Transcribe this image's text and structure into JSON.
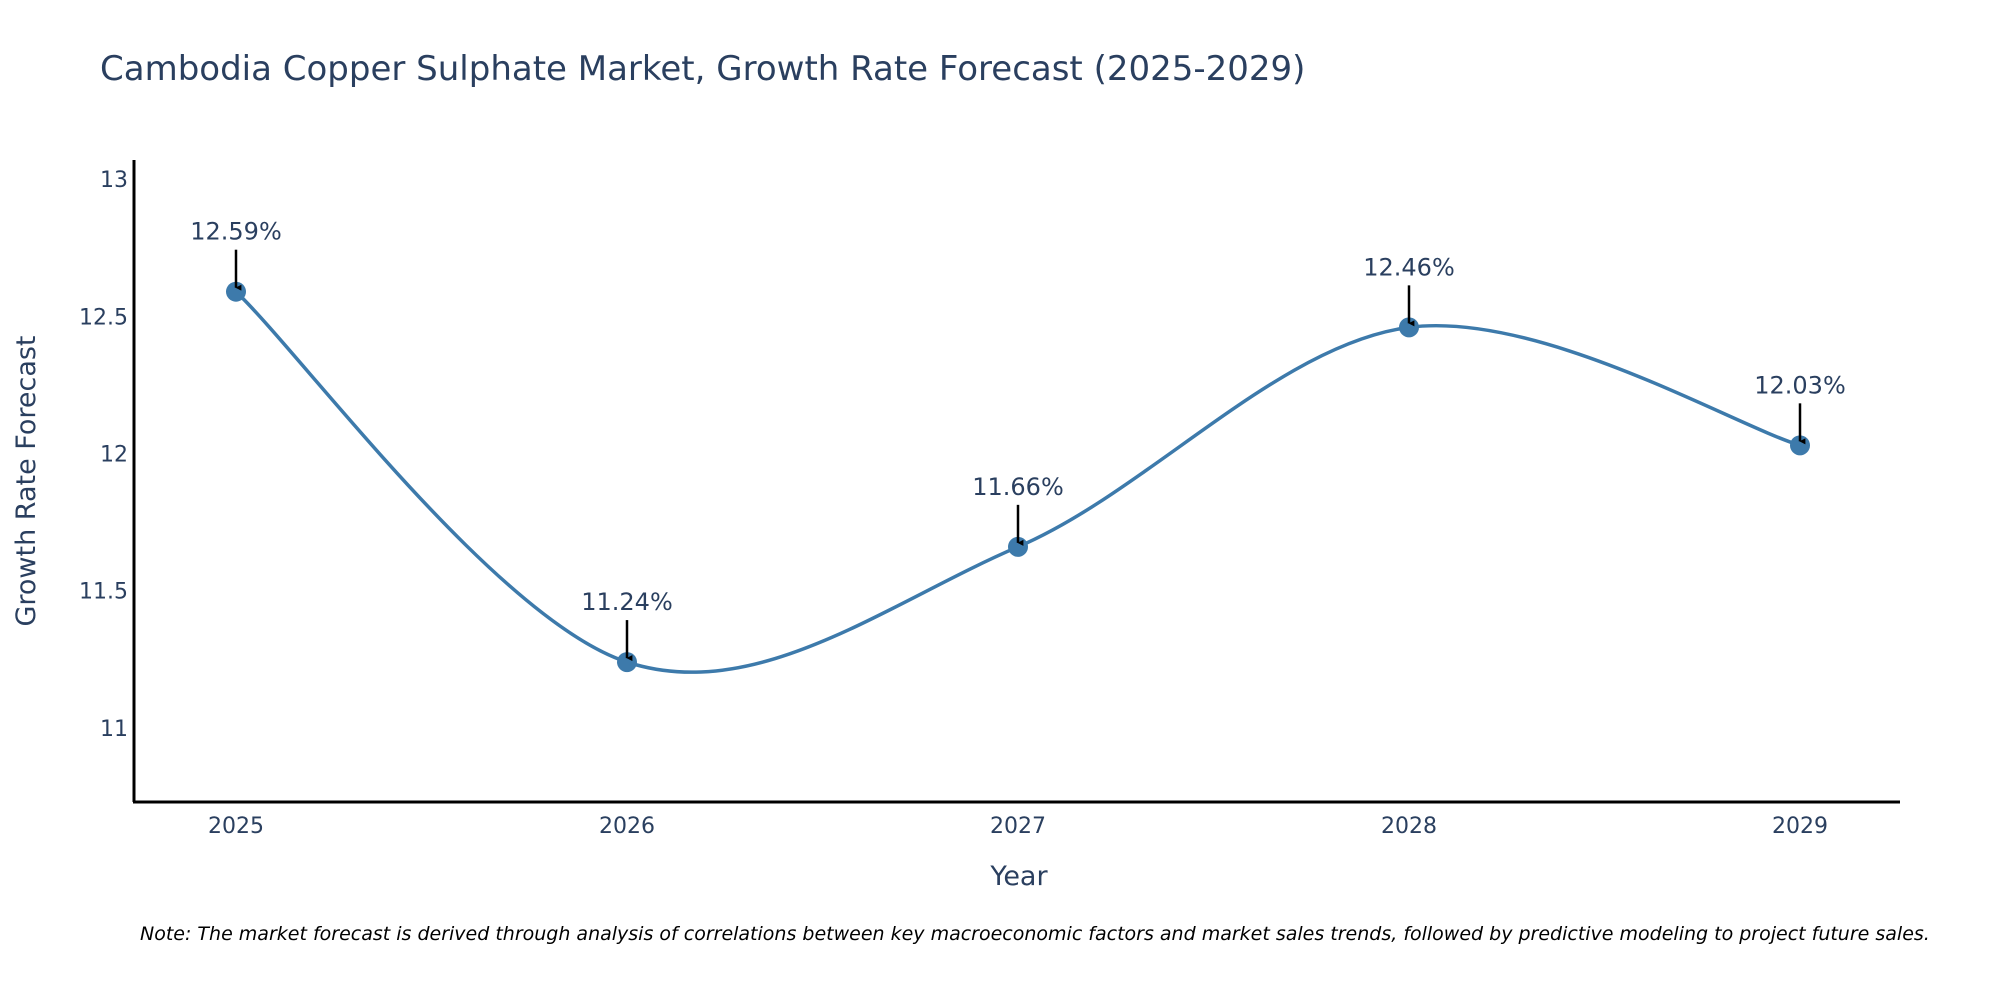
{
  "chart_data": {
    "type": "line",
    "title": "Cambodia Copper Sulphate Market, Growth Rate Forecast (2025-2029)",
    "xlabel": "Year",
    "ylabel": "Growth Rate Forecast",
    "categories": [
      "2025",
      "2026",
      "2027",
      "2028",
      "2029"
    ],
    "values": [
      12.59,
      11.24,
      11.66,
      12.46,
      12.03
    ],
    "data_labels": [
      "12.59%",
      "11.24%",
      "11.66%",
      "12.46%",
      "12.03%"
    ],
    "y_ticks": [
      11,
      11.5,
      12,
      12.5,
      13
    ],
    "y_tick_labels": [
      "11",
      "11.5",
      "12",
      "12.5",
      "13"
    ],
    "ylim": [
      10.73,
      13.07
    ],
    "line_shape": "spline",
    "grid": false,
    "note": "Note: The market forecast is derived through analysis of correlations between key macroeconomic factors and market sales trends, followed by predictive modeling to project future sales."
  },
  "colors": {
    "series": "#3d7aab",
    "axis": "#000000",
    "text": "#2a3f5f",
    "arrow": "#000000"
  }
}
